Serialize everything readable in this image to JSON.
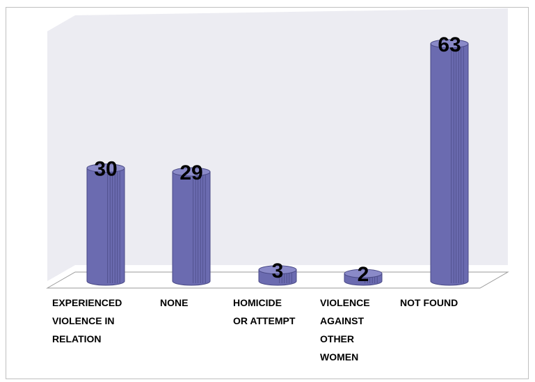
{
  "chart_data": {
    "type": "bar",
    "title": "",
    "xlabel": "",
    "ylabel": "",
    "categories": [
      "EXPERIENCED VIOLENCE IN RELATION",
      "NONE",
      "HOMICIDE OR ATTEMPT",
      "VIOLENCE AGAINST OTHER WOMEN",
      "NOT FOUND"
    ],
    "category_lines": [
      [
        "EXPERIENCED",
        "VIOLENCE IN",
        "RELATION"
      ],
      [
        "NONE"
      ],
      [
        "HOMICIDE",
        "OR ATTEMPT"
      ],
      [
        "VIOLENCE",
        "AGAINST",
        "OTHER",
        "WOMEN"
      ],
      [
        "NOT FOUND"
      ]
    ],
    "values": [
      30,
      29,
      3,
      2,
      63
    ],
    "data_labels": [
      "30",
      "29",
      "3",
      "2",
      "63"
    ],
    "ylim": [
      0,
      70
    ],
    "grid": false,
    "legend": "none",
    "colors": {
      "bar_fill": "#6b6bb0",
      "bar_dark": "#4a4a86",
      "bar_top": "#8a8ac8",
      "wall": "#ececf2",
      "floor": "#ffffff",
      "floor_line": "#9a9a9a"
    }
  }
}
